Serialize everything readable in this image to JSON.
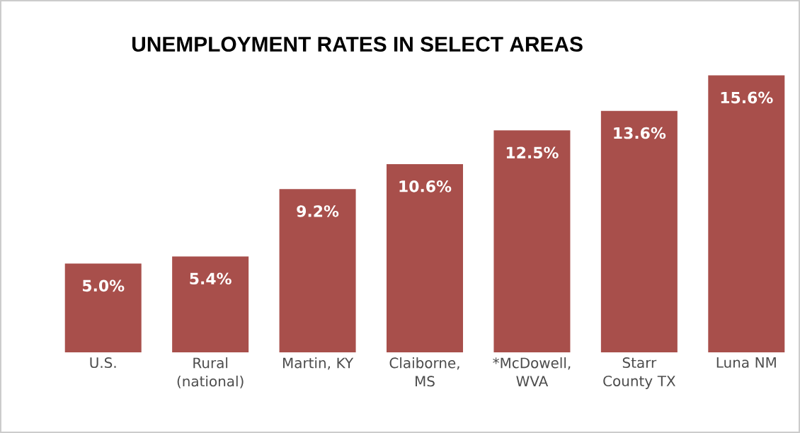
{
  "chart_data": {
    "type": "bar",
    "title": "UNEMPLOYMENT RATES IN SELECT AREAS",
    "categories": [
      "U.S.",
      "Rural (national)",
      "Martin, KY",
      "Claiborne, MS",
      "*McDowell, WVA",
      "Starr County TX",
      "Luna NM"
    ],
    "values": [
      5.0,
      5.4,
      9.2,
      10.6,
      12.5,
      13.6,
      15.6
    ],
    "value_labels": [
      "5.0%",
      "5.4%",
      "9.2%",
      "10.6%",
      "12.5%",
      "13.6%",
      "15.6%"
    ],
    "color": "#a84f4b"
  }
}
